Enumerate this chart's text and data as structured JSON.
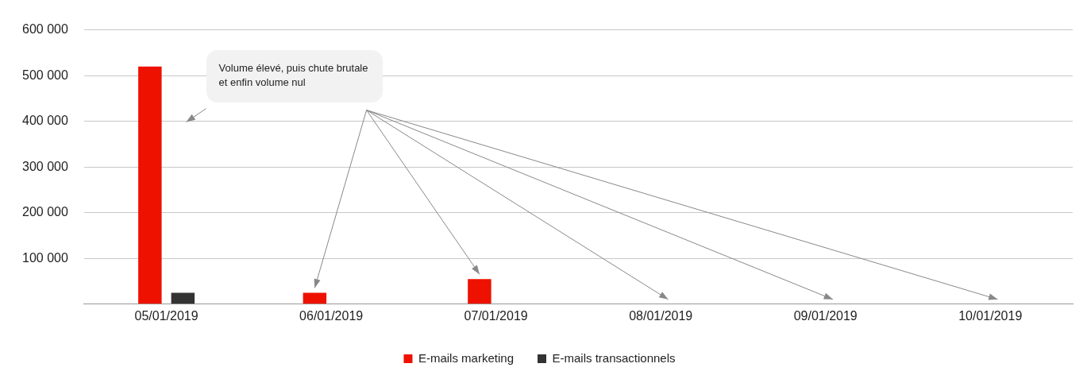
{
  "chart_data": {
    "type": "bar",
    "categories": [
      "05/01/2019",
      "06/01/2019",
      "07/01/2019",
      "08/01/2019",
      "09/01/2019",
      "10/01/2019"
    ],
    "series": [
      {
        "name": "E-mails marketing",
        "color": "#ee1100",
        "values": [
          520000,
          25000,
          55000,
          0,
          0,
          0
        ]
      },
      {
        "name": "E-mails transactionnels",
        "color": "#333333",
        "values": [
          25000,
          0,
          0,
          0,
          0,
          0
        ]
      }
    ],
    "ylim": [
      0,
      600000
    ],
    "yticks": [
      {
        "value": 0,
        "label": null
      },
      {
        "value": 100000,
        "label": "100 000"
      },
      {
        "value": 200000,
        "label": "200 000"
      },
      {
        "value": 300000,
        "label": "300 000"
      },
      {
        "value": 400000,
        "label": "400 000"
      },
      {
        "value": 500000,
        "label": "500 000"
      },
      {
        "value": 600000,
        "label": "600 000"
      }
    ],
    "grid": "y",
    "legend": "bottom",
    "annotations": [
      "Volume élevé, puis chute brutale et enfin volume nul"
    ]
  }
}
